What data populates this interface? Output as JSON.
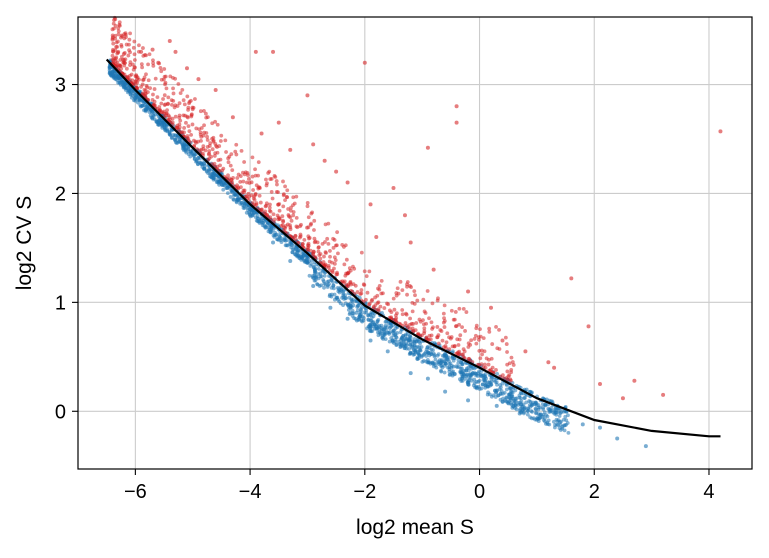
{
  "chart_data": {
    "type": "scatter",
    "xlabel": "log2 mean S",
    "ylabel": "log2 CV S",
    "xlim": [
      -7.0,
      4.75
    ],
    "ylim": [
      -0.53,
      3.62
    ],
    "xticks": [
      -6,
      -4,
      -2,
      0,
      2,
      4
    ],
    "yticks": [
      0,
      1,
      2,
      3
    ],
    "xtick_labels": [
      "−6",
      "−4",
      "−2",
      "0",
      "2",
      "4"
    ],
    "ytick_labels": [
      "0",
      "1",
      "2",
      "3"
    ],
    "grid": true,
    "colors": {
      "high": "#d62728",
      "low": "#1f77b4",
      "fit": "#000000",
      "grid": "#cccccc"
    },
    "fit_curve": {
      "x": [
        -6.5,
        -6.0,
        -5.0,
        -4.0,
        -3.0,
        -2.0,
        -1.0,
        0.0,
        1.0,
        2.0,
        3.0,
        4.0,
        4.2
      ],
      "y": [
        3.23,
        2.95,
        2.42,
        1.9,
        1.45,
        0.97,
        0.66,
        0.4,
        0.12,
        -0.08,
        -0.18,
        -0.23,
        -0.23
      ]
    },
    "highlighted_points": {
      "x": [
        -6.2,
        -5.9,
        -5.7,
        -5.6,
        -5.4,
        -5.3,
        -5.1,
        -4.9,
        -4.6,
        -4.3,
        -3.9,
        -3.8,
        -3.6,
        -3.5,
        -3.3,
        -3.0,
        -2.9,
        -2.7,
        -2.5,
        -2.3,
        -2.0,
        -1.9,
        -1.8,
        -1.5,
        -1.3,
        -1.2,
        -0.9,
        -0.8,
        -0.4,
        -0.4,
        -0.2,
        0.2,
        0.4,
        0.8,
        1.2,
        1.3,
        1.6,
        1.9,
        2.1,
        2.5,
        2.7,
        3.2,
        4.2
      ],
      "y": [
        3.28,
        3.3,
        3.32,
        3.2,
        3.4,
        3.3,
        3.15,
        3.05,
        2.95,
        2.7,
        3.3,
        2.55,
        3.3,
        2.65,
        2.4,
        2.9,
        2.45,
        2.3,
        2.2,
        2.1,
        3.2,
        1.9,
        1.6,
        2.05,
        1.8,
        1.55,
        2.42,
        1.3,
        2.8,
        2.65,
        1.1,
        0.95,
        0.65,
        0.55,
        0.45,
        0.4,
        1.22,
        0.78,
        0.25,
        0.12,
        0.28,
        0.15,
        2.57
      ]
    },
    "regular_points": {
      "x": [
        -6.3,
        -6.1,
        -5.9,
        -5.5,
        -5.1,
        -4.7,
        -4.4,
        -4.0,
        -3.6,
        -3.3,
        -2.9,
        -2.6,
        -2.3,
        -1.9,
        -1.6,
        -1.2,
        -0.9,
        -0.6,
        -0.2,
        0.3,
        0.7,
        1.1,
        1.4,
        1.8,
        2.1,
        2.4,
        2.9
      ],
      "y": [
        3.1,
        3.0,
        2.9,
        2.65,
        2.45,
        2.25,
        2.05,
        1.85,
        1.55,
        1.38,
        1.15,
        0.95,
        0.85,
        0.65,
        0.55,
        0.35,
        0.3,
        0.18,
        0.1,
        0.05,
        -0.02,
        -0.05,
        -0.1,
        -0.12,
        -0.15,
        -0.25,
        -0.32
      ]
    }
  }
}
